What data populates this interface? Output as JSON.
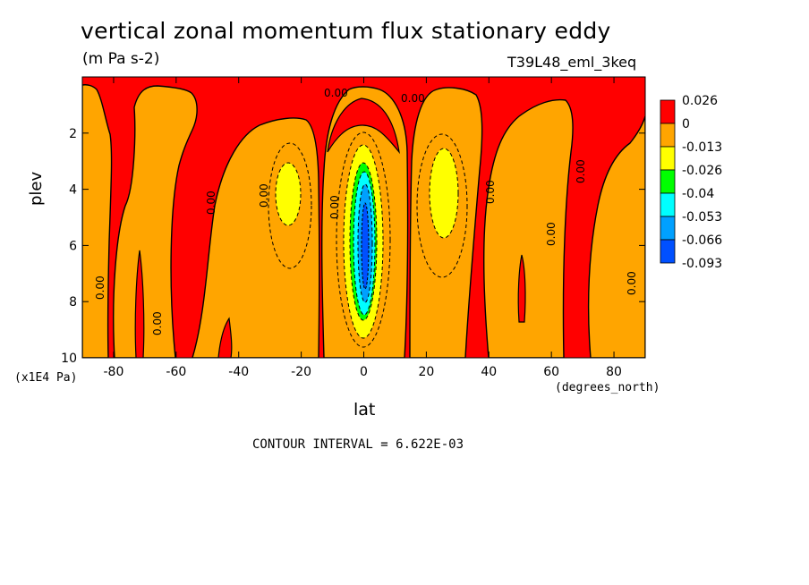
{
  "chart_data": {
    "type": "heatmap",
    "title": "vertical zonal momentum flux stationary eddy",
    "units": "(m Pa s-2)",
    "experiment": "T39L48_eml_3keq",
    "xlabel": "lat",
    "ylabel": "plev",
    "x_units": "(degrees_north)",
    "y_units": "(x1E4 Pa)",
    "xlim": [
      -90,
      90
    ],
    "ylim": [
      10,
      0
    ],
    "x_ticks": [
      -80,
      -60,
      -40,
      -20,
      0,
      20,
      40,
      60,
      80
    ],
    "y_ticks": [
      2,
      4,
      6,
      8,
      10
    ],
    "x_tick_labels": [
      "-80",
      "-60",
      "-40",
      "-20",
      "0",
      "20",
      "40",
      "60",
      "80"
    ],
    "y_tick_labels": [
      "2",
      "4",
      "6",
      "8",
      "10"
    ],
    "contour_interval_text": "CONTOUR INTERVAL = 6.622E-03",
    "colorbar": {
      "labels": [
        "0.026",
        "0",
        "-0.013",
        "-0.026",
        "-0.04",
        "-0.053",
        "-0.066",
        "-0.093"
      ],
      "colors": [
        "#ff0000",
        "#ffa500",
        "#ffff00",
        "#00ff00",
        "#00ffff",
        "#00a0ff",
        "#0050ff"
      ]
    },
    "contour_labels": [
      "0.00",
      "0.00",
      "0.00",
      "0.00",
      "0.00",
      "0.00",
      "0.00",
      "0.00",
      "0.00",
      "0.00",
      "0.00"
    ],
    "features": [
      {
        "lon_lat": [
          0,
          5.5
        ],
        "value": -0.093,
        "desc": "equatorial minimum"
      },
      {
        "lon_lat": [
          -25,
          4.5
        ],
        "value": -0.026,
        "desc": "southern subtropical minimum"
      },
      {
        "lon_lat": [
          25,
          4.5
        ],
        "value": -0.026,
        "desc": "northern subtropical minimum"
      }
    ]
  }
}
